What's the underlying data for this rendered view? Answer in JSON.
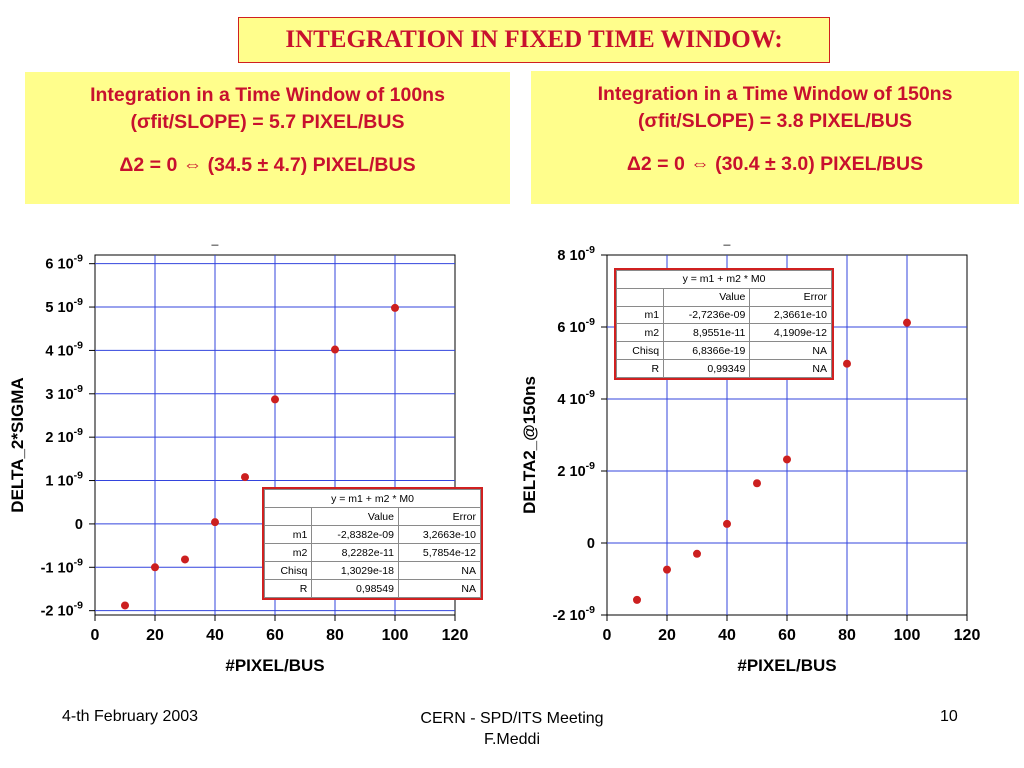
{
  "slide": {
    "title": "INTEGRATION IN FIXED TIME WINDOW:",
    "left_box": {
      "line1": "Integration in a Time Window of 100ns",
      "line2": "(σfit/SLOPE) = 5.7 PIXEL/BUS",
      "line3": "Δ2 = 0 ⇔ (34.5 ± 4.7) PIXEL/BUS"
    },
    "right_box": {
      "line1": "Integration in a Time Window of 150ns",
      "line2": "(σfit/SLOPE) = 3.8 PIXEL/BUS",
      "line3": "Δ2 = 0 ⇔ (30.4 ± 3.0) PIXEL/BUS"
    },
    "footer": {
      "date": "4-th February 2003",
      "center_line1": "CERN - SPD/ITS Meeting",
      "center_line2": "F.Meddi",
      "page": "10"
    }
  },
  "chart_data": [
    {
      "type": "scatter",
      "marker_color": "#cc1f1f",
      "grid_color": "#3344dd",
      "grid": true,
      "xlabel": "#PIXEL/BUS",
      "ylabel": "DELTA_2*SIGMA",
      "xlim": [
        0,
        120
      ],
      "ylim": [
        -2.1e-09,
        6.2e-09
      ],
      "x_ticks": [
        0,
        20,
        40,
        60,
        80,
        100,
        120
      ],
      "y_ticks": [
        {
          "value": 6e-09,
          "mant": "6 10",
          "exp": "-9"
        },
        {
          "value": 5e-09,
          "mant": "5 10",
          "exp": "-9"
        },
        {
          "value": 4e-09,
          "mant": "4 10",
          "exp": "-9"
        },
        {
          "value": 3e-09,
          "mant": "3 10",
          "exp": "-9"
        },
        {
          "value": 2e-09,
          "mant": "2 10",
          "exp": "-9"
        },
        {
          "value": 1e-09,
          "mant": "1 10",
          "exp": "-9"
        },
        {
          "value": 0,
          "mant": "0",
          "exp": ""
        },
        {
          "value": -1e-09,
          "mant": "-1 10",
          "exp": "-9"
        },
        {
          "value": -2e-09,
          "mant": "-2 10",
          "exp": "-9"
        }
      ],
      "top_mark": "_",
      "x": [
        10,
        20,
        30,
        40,
        50,
        60,
        80,
        100
      ],
      "y": [
        -1.88e-09,
        -1e-09,
        -8.2e-10,
        4e-11,
        1.08e-09,
        2.87e-09,
        4.02e-09,
        4.98e-09
      ],
      "fit_table": {
        "equation": "y = m1 + m2 * M0",
        "headers": [
          "",
          "Value",
          "Error"
        ],
        "rows": [
          [
            "m1",
            "-2,8382e-09",
            "3,2663e-10"
          ],
          [
            "m2",
            "8,2282e-11",
            "5,7854e-12"
          ],
          [
            "Chisq",
            "1,3029e-18",
            "NA"
          ],
          [
            "R",
            "0,98549",
            "NA"
          ]
        ]
      }
    },
    {
      "type": "scatter",
      "marker_color": "#cc1f1f",
      "grid_color": "#3344dd",
      "grid": true,
      "xlabel": "#PIXEL/BUS",
      "ylabel": "DELTA2_@150ns",
      "xlim": [
        0,
        120
      ],
      "ylim": [
        -2e-09,
        8e-09
      ],
      "x_ticks": [
        0,
        20,
        40,
        60,
        80,
        100,
        120
      ],
      "y_ticks": [
        {
          "value": 8e-09,
          "mant": "8 10",
          "exp": "-9"
        },
        {
          "value": 6e-09,
          "mant": "6 10",
          "exp": "-9"
        },
        {
          "value": 4e-09,
          "mant": "4 10",
          "exp": "-9"
        },
        {
          "value": 2e-09,
          "mant": "2 10",
          "exp": "-9"
        },
        {
          "value": 0,
          "mant": "0",
          "exp": ""
        },
        {
          "value": -2e-09,
          "mant": "-2 10",
          "exp": "-9"
        }
      ],
      "top_mark": "_",
      "x": [
        10,
        20,
        30,
        40,
        50,
        60,
        80,
        100
      ],
      "y": [
        -1.58e-09,
        -7.4e-10,
        -3e-10,
        5.3e-10,
        1.66e-09,
        2.32e-09,
        4.98e-09,
        6.12e-09
      ],
      "fit_table": {
        "equation": "y = m1 + m2 * M0",
        "headers": [
          "",
          "Value",
          "Error"
        ],
        "rows": [
          [
            "m1",
            "-2,7236e-09",
            "2,3661e-10"
          ],
          [
            "m2",
            "8,9551e-11",
            "4,1909e-12"
          ],
          [
            "Chisq",
            "6,8366e-19",
            "NA"
          ],
          [
            "R",
            "0,99349",
            "NA"
          ]
        ]
      }
    }
  ]
}
